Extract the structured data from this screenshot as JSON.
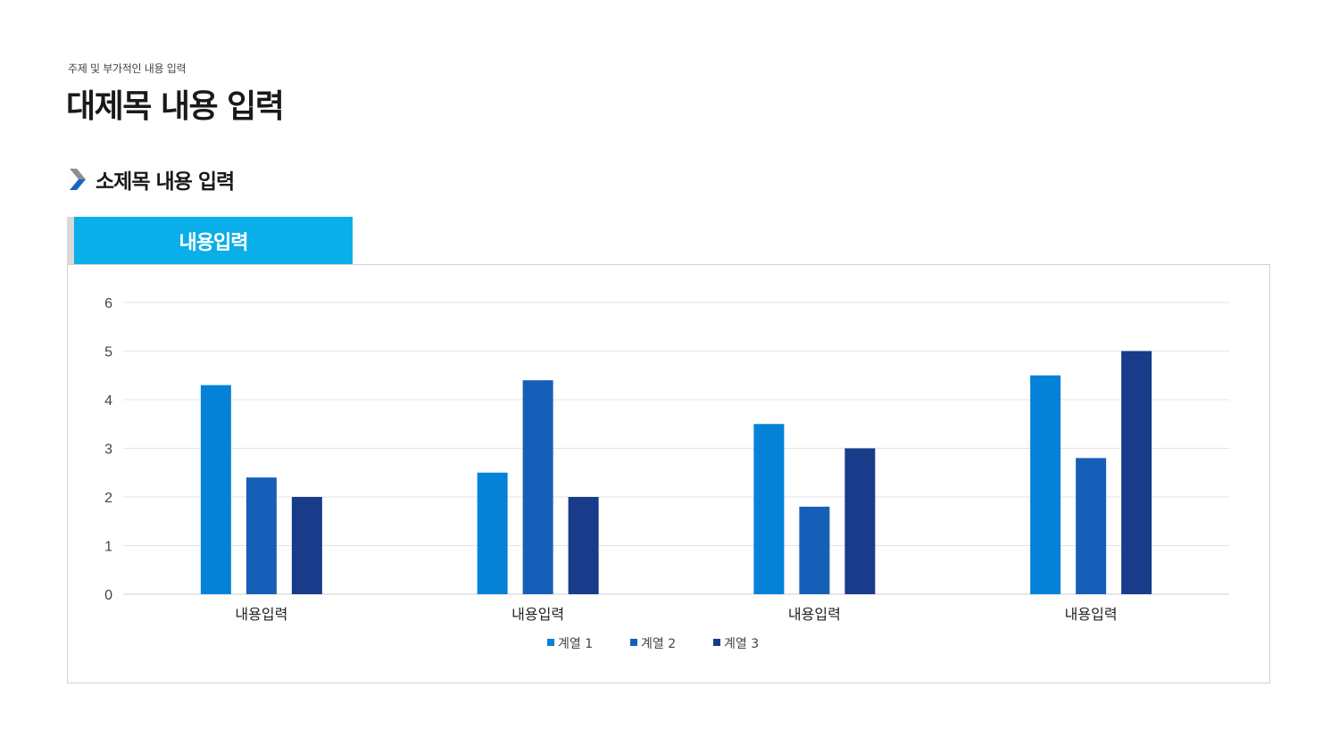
{
  "header": {
    "subtitle": "주제 및 부가적인 내용 입력",
    "title": "대제목 내용 입력"
  },
  "section": {
    "title": "소제목 내용 입력",
    "icon": "chevron-right-icon"
  },
  "tab": {
    "label": "내용입력",
    "color": "#0aaee8"
  },
  "chart_data": {
    "type": "bar",
    "categories": [
      "내용입력",
      "내용입력",
      "내용입력",
      "내용입력"
    ],
    "series": [
      {
        "name": "계열 1",
        "values": [
          4.3,
          2.5,
          3.5,
          4.5
        ],
        "color": "#0482d8"
      },
      {
        "name": "계열 2",
        "values": [
          2.4,
          4.4,
          1.8,
          2.8
        ],
        "color": "#165fb8"
      },
      {
        "name": "계열 3",
        "values": [
          2.0,
          2.0,
          3.0,
          5.0
        ],
        "color": "#183b8a"
      }
    ],
    "yticks": [
      "0",
      "1",
      "2",
      "3",
      "4",
      "5",
      "6"
    ],
    "ylim": [
      0,
      6
    ],
    "grid": true,
    "legend": "bottom"
  }
}
